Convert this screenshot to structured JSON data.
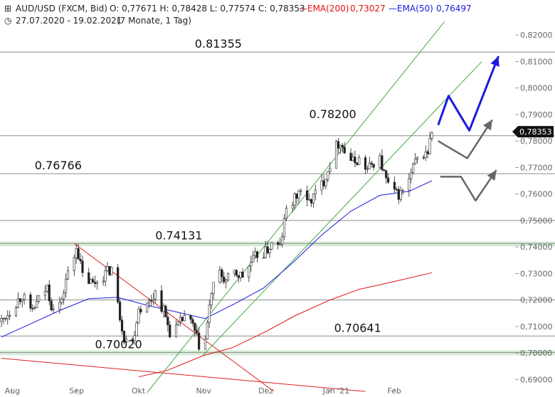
{
  "header": {
    "title": "AUD/USD (FXCM, Bid)",
    "ohlc": "O: 0,77671  H: 0,78428  L: 0,77574  C: 0,78353",
    "ema200_label": "EMA(200)",
    "ema200_value": "0,73027",
    "ema50_label": "EMA(50)",
    "ema50_value": "0,76497",
    "range": "27.07.2020 - 19.02.2021",
    "period": "(7 Monate, 1 Tag)",
    "colors": {
      "ema200": "#e01010",
      "ema50": "#1a1ae0"
    }
  },
  "price_tag": "0,78353",
  "chart_data": {
    "type": "candlestick",
    "x_range": [
      "2020-07-27",
      "2021-02-19"
    ],
    "ylim": [
      0.685,
      0.823
    ],
    "y_ticks": [
      {
        "v": 0.82,
        "label": "0,82000"
      },
      {
        "v": 0.81,
        "label": "0,81000"
      },
      {
        "v": 0.8,
        "label": "0,80000"
      },
      {
        "v": 0.79,
        "label": "0,79000"
      },
      {
        "v": 0.78,
        "label": "0,78000"
      },
      {
        "v": 0.77,
        "label": "0,77000"
      },
      {
        "v": 0.76,
        "label": "0,76000"
      },
      {
        "v": 0.75,
        "label": "0,75000"
      },
      {
        "v": 0.74,
        "label": "0,74000"
      },
      {
        "v": 0.73,
        "label": "0,73000"
      },
      {
        "v": 0.72,
        "label": "0,72000"
      },
      {
        "v": 0.71,
        "label": "0,71000"
      },
      {
        "v": 0.7,
        "label": "0,70000"
      },
      {
        "v": 0.69,
        "label": "0,69000"
      }
    ],
    "x_ticks": [
      {
        "date": "2020-08-01",
        "label": "Aug"
      },
      {
        "date": "2020-09-01",
        "label": "Sep"
      },
      {
        "date": "2020-10-01",
        "label": "Okt"
      },
      {
        "date": "2020-11-01",
        "label": "Nov"
      },
      {
        "date": "2020-12-01",
        "label": "Dez"
      },
      {
        "date": "2021-01-01",
        "label": "Jan '21"
      },
      {
        "date": "2021-02-01",
        "label": "Feb"
      }
    ],
    "levels": [
      {
        "v": 0.81355,
        "label": "0.81355",
        "label_date": "2020-10-28"
      },
      {
        "v": 0.782,
        "label": "0.78200",
        "label_date": "2020-12-22",
        "label_v": 0.787
      },
      {
        "v": 0.76766,
        "label": "0.76766",
        "label_date": "2020-08-12"
      },
      {
        "v": 0.75
      },
      {
        "v": 0.74131,
        "label": "0.74131",
        "label_date": "2020-10-09",
        "zone": true
      },
      {
        "v": 0.72
      },
      {
        "v": 0.70641,
        "label": "0.70641",
        "label_date": "2021-01-03"
      },
      {
        "v": 0.7002,
        "label": "0.70020",
        "label_date": "2020-09-10",
        "zone": true
      }
    ],
    "trendlines": [
      {
        "color": "#e02020",
        "from": [
          "2020-08-31",
          0.74131
        ],
        "to": [
          "2020-12-05",
          0.6855
        ]
      },
      {
        "color": "#e02020",
        "from": [
          "2020-07-27",
          0.698
        ],
        "to": [
          "2021-01-18",
          0.6855
        ]
      },
      {
        "color": "#44aa44",
        "from": [
          "2020-10-05",
          0.685
        ],
        "to": [
          "2021-02-25",
          0.825
        ]
      },
      {
        "color": "#44aa44",
        "from": [
          "2020-11-01",
          0.6992
        ],
        "to": [
          "2021-03-15",
          0.81
        ]
      }
    ],
    "scenarios": [
      {
        "color": "#1a1ae0",
        "points": [
          [
            "2021-02-22",
            0.786
          ],
          [
            "2021-02-27",
            0.797
          ],
          [
            "2021-03-09",
            0.784
          ],
          [
            "2021-03-23",
            0.812
          ]
        ],
        "arrow": true
      },
      {
        "color": "#666666",
        "points": [
          [
            "2021-02-22",
            0.78
          ],
          [
            "2021-03-08",
            0.7735
          ],
          [
            "2021-03-20",
            0.788
          ]
        ],
        "arrow": true
      },
      {
        "color": "#666666",
        "points": [
          [
            "2021-02-23",
            0.7665
          ],
          [
            "2021-03-05",
            0.7665
          ],
          [
            "2021-03-12",
            0.7575
          ],
          [
            "2021-03-22",
            0.769
          ]
        ],
        "arrow": true
      }
    ],
    "ema50": [
      [
        "2020-07-27",
        0.706
      ],
      [
        "2020-08-10",
        0.711
      ],
      [
        "2020-08-24",
        0.716
      ],
      [
        "2020-09-07",
        0.7205
      ],
      [
        "2020-09-21",
        0.721
      ],
      [
        "2020-10-05",
        0.718
      ],
      [
        "2020-10-19",
        0.7155
      ],
      [
        "2020-11-02",
        0.713
      ],
      [
        "2020-11-16",
        0.7185
      ],
      [
        "2020-11-30",
        0.7245
      ],
      [
        "2020-12-14",
        0.734
      ],
      [
        "2020-12-28",
        0.7445
      ],
      [
        "2021-01-11",
        0.7535
      ],
      [
        "2021-01-25",
        0.7595
      ],
      [
        "2021-02-08",
        0.761
      ],
      [
        "2021-02-19",
        0.765
      ]
    ],
    "ema200": [
      [
        "2020-10-01",
        0.691
      ],
      [
        "2020-10-15",
        0.6935
      ],
      [
        "2020-11-01",
        0.699
      ],
      [
        "2020-11-15",
        0.702
      ],
      [
        "2020-12-01",
        0.708
      ],
      [
        "2020-12-15",
        0.714
      ],
      [
        "2021-01-01",
        0.72
      ],
      [
        "2021-01-15",
        0.724
      ],
      [
        "2021-02-01",
        0.727
      ],
      [
        "2021-02-19",
        0.7303
      ]
    ],
    "close_path": [
      [
        "2020-07-27",
        0.712
      ],
      [
        "2020-08-01",
        0.717
      ],
      [
        "2020-08-06",
        0.722
      ],
      [
        "2020-08-10",
        0.715
      ],
      [
        "2020-08-14",
        0.72
      ],
      [
        "2020-08-18",
        0.725
      ],
      [
        "2020-08-20",
        0.718
      ],
      [
        "2020-08-25",
        0.719
      ],
      [
        "2020-08-27",
        0.728
      ],
      [
        "2020-08-31",
        0.736
      ],
      [
        "2020-09-01",
        0.741
      ],
      [
        "2020-09-04",
        0.729
      ],
      [
        "2020-09-09",
        0.726
      ],
      [
        "2020-09-12",
        0.728
      ],
      [
        "2020-09-15",
        0.73
      ],
      [
        "2020-09-18",
        0.732
      ],
      [
        "2020-09-21",
        0.718
      ],
      [
        "2020-09-24",
        0.706
      ],
      [
        "2020-09-28",
        0.704
      ],
      [
        "2020-10-01",
        0.717
      ],
      [
        "2020-10-05",
        0.718
      ],
      [
        "2020-10-09",
        0.723
      ],
      [
        "2020-10-13",
        0.716
      ],
      [
        "2020-10-16",
        0.708
      ],
      [
        "2020-10-20",
        0.71
      ],
      [
        "2020-10-23",
        0.714
      ],
      [
        "2020-10-27",
        0.71
      ],
      [
        "2020-10-30",
        0.703
      ],
      [
        "2020-11-02",
        0.705
      ],
      [
        "2020-11-05",
        0.723
      ],
      [
        "2020-11-09",
        0.73
      ],
      [
        "2020-11-12",
        0.727
      ],
      [
        "2020-11-16",
        0.73
      ],
      [
        "2020-11-20",
        0.729
      ],
      [
        "2020-11-24",
        0.734
      ],
      [
        "2020-11-27",
        0.737
      ],
      [
        "2020-12-01",
        0.738
      ],
      [
        "2020-12-04",
        0.741
      ],
      [
        "2020-12-08",
        0.74
      ],
      [
        "2020-12-11",
        0.754
      ],
      [
        "2020-12-15",
        0.758
      ],
      [
        "2020-12-18",
        0.762
      ],
      [
        "2020-12-21",
        0.756
      ],
      [
        "2020-12-24",
        0.759
      ],
      [
        "2020-12-29",
        0.765
      ],
      [
        "2021-01-04",
        0.778
      ],
      [
        "2021-01-06",
        0.78
      ],
      [
        "2021-01-08",
        0.776
      ],
      [
        "2021-01-12",
        0.772
      ],
      [
        "2021-01-15",
        0.773
      ],
      [
        "2021-01-19",
        0.769
      ],
      [
        "2021-01-22",
        0.772
      ],
      [
        "2021-01-25",
        0.773
      ],
      [
        "2021-01-28",
        0.765
      ],
      [
        "2021-02-01",
        0.76
      ],
      [
        "2021-02-04",
        0.76
      ],
      [
        "2021-02-08",
        0.765
      ],
      [
        "2021-02-11",
        0.772
      ],
      [
        "2021-02-15",
        0.775
      ],
      [
        "2021-02-17",
        0.776
      ],
      [
        "2021-02-19",
        0.7835
      ]
    ]
  }
}
